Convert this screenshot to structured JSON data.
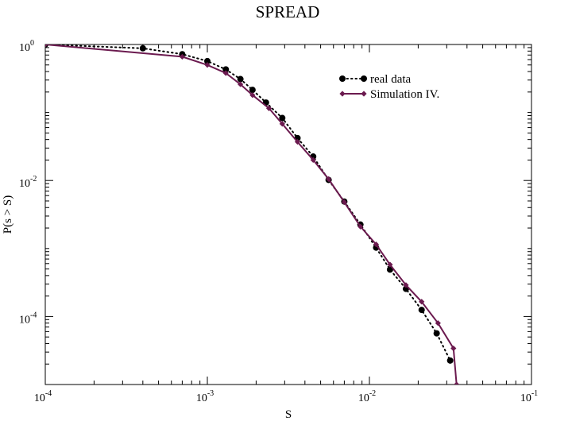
{
  "chart_data": {
    "type": "line",
    "title": "SPREAD",
    "xlabel": "S",
    "ylabel": "P(s > S)",
    "xscale": "log",
    "yscale": "log",
    "xlim": [
      0.0001,
      0.1
    ],
    "ylim": [
      1e-05,
      1
    ],
    "x_ticks": [
      {
        "value": 0.0001,
        "base": "10",
        "exp": "-4"
      },
      {
        "value": 0.001,
        "base": "10",
        "exp": "-3"
      },
      {
        "value": 0.01,
        "base": "10",
        "exp": "-2"
      },
      {
        "value": 0.1,
        "base": "10",
        "exp": "-1"
      }
    ],
    "y_ticks": [
      {
        "value": 1,
        "base": "10",
        "exp": "0"
      },
      {
        "value": 0.01,
        "base": "10",
        "exp": "-2"
      },
      {
        "value": 0.0001,
        "base": "10",
        "exp": "-4"
      }
    ],
    "grid": false,
    "legend_position": "top-right",
    "series": [
      {
        "name": "real data",
        "color": "#000000",
        "line_style": "dotted",
        "marker": "circle",
        "points": [
          [
            0.0001,
            1.0
          ],
          [
            0.0004,
            0.88
          ],
          [
            0.0007,
            0.72
          ],
          [
            0.001,
            0.57
          ],
          [
            0.0013,
            0.43
          ],
          [
            0.0016,
            0.31
          ],
          [
            0.0019,
            0.215
          ],
          [
            0.0023,
            0.14
          ],
          [
            0.0029,
            0.083
          ],
          [
            0.0036,
            0.042
          ],
          [
            0.0045,
            0.0225
          ],
          [
            0.0056,
            0.0102
          ],
          [
            0.007,
            0.0049
          ],
          [
            0.0088,
            0.00225
          ],
          [
            0.011,
            0.00103
          ],
          [
            0.0134,
            0.00049
          ],
          [
            0.0168,
            0.000255
          ],
          [
            0.021,
            0.000125
          ],
          [
            0.026,
            5.65e-05
          ],
          [
            0.0315,
            2.25e-05
          ]
        ]
      },
      {
        "name": "Simulation IV.",
        "color": "#6b1a4f",
        "line_style": "solid",
        "marker": "diamond",
        "points": [
          [
            0.0001,
            1.0
          ],
          [
            0.0007,
            0.66
          ],
          [
            0.001,
            0.5
          ],
          [
            0.0013,
            0.38
          ],
          [
            0.0016,
            0.26
          ],
          [
            0.0019,
            0.18
          ],
          [
            0.0024,
            0.115
          ],
          [
            0.0029,
            0.068
          ],
          [
            0.0036,
            0.037
          ],
          [
            0.0045,
            0.02
          ],
          [
            0.0056,
            0.0105
          ],
          [
            0.007,
            0.0048
          ],
          [
            0.0088,
            0.0021
          ],
          [
            0.011,
            0.00115
          ],
          [
            0.0134,
            0.00058
          ],
          [
            0.0168,
            0.00029
          ],
          [
            0.021,
            0.000165
          ],
          [
            0.0265,
            8e-05
          ],
          [
            0.033,
            3.4e-05
          ],
          [
            0.0345,
            1e-05
          ]
        ]
      }
    ]
  }
}
